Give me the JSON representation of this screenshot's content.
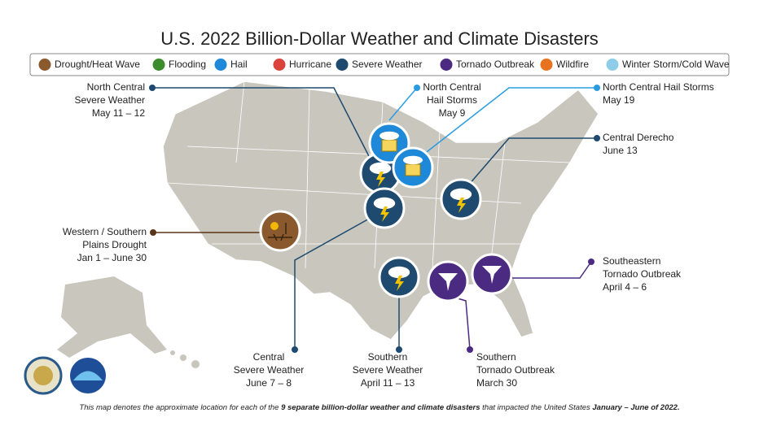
{
  "title": "U.S. 2022 Billion-Dollar Weather and Climate Disasters",
  "legend": [
    "Drought/Heat Wave",
    "Flooding",
    "Hail",
    "Hurricane",
    "Severe Weather",
    "Tornado Outbreak",
    "Wildfire",
    "Winter Storm/Cold Wave"
  ],
  "events": [
    {
      "lines": [
        "North Central",
        "Severe Weather",
        "May 11 – 12"
      ]
    },
    {
      "lines": [
        "North Central",
        "Hail Storms",
        "May 9"
      ]
    },
    {
      "lines": [
        "North Central Hail Storms",
        "May 19"
      ]
    },
    {
      "lines": [
        "Central Derecho",
        "June 13"
      ]
    },
    {
      "lines": [
        "Western / Southern",
        "Plains Drought",
        "Jan 1 – June 30"
      ]
    },
    {
      "lines": [
        "Central",
        "Severe Weather",
        "June 7 – 8"
      ]
    },
    {
      "lines": [
        "Southern",
        "Severe Weather",
        "April 11 – 13"
      ]
    },
    {
      "lines": [
        "Southern",
        "Tornado Outbreak",
        "March 30"
      ]
    },
    {
      "lines": [
        "Southeastern",
        "Tornado Outbreak",
        "April 4 – 6"
      ]
    }
  ],
  "footer": [
    "This map denotes the approximate location for each of the ",
    "9 separate billion-dollar weather and climate disasters",
    " that impacted the United States ",
    "January – June of 2022."
  ]
}
